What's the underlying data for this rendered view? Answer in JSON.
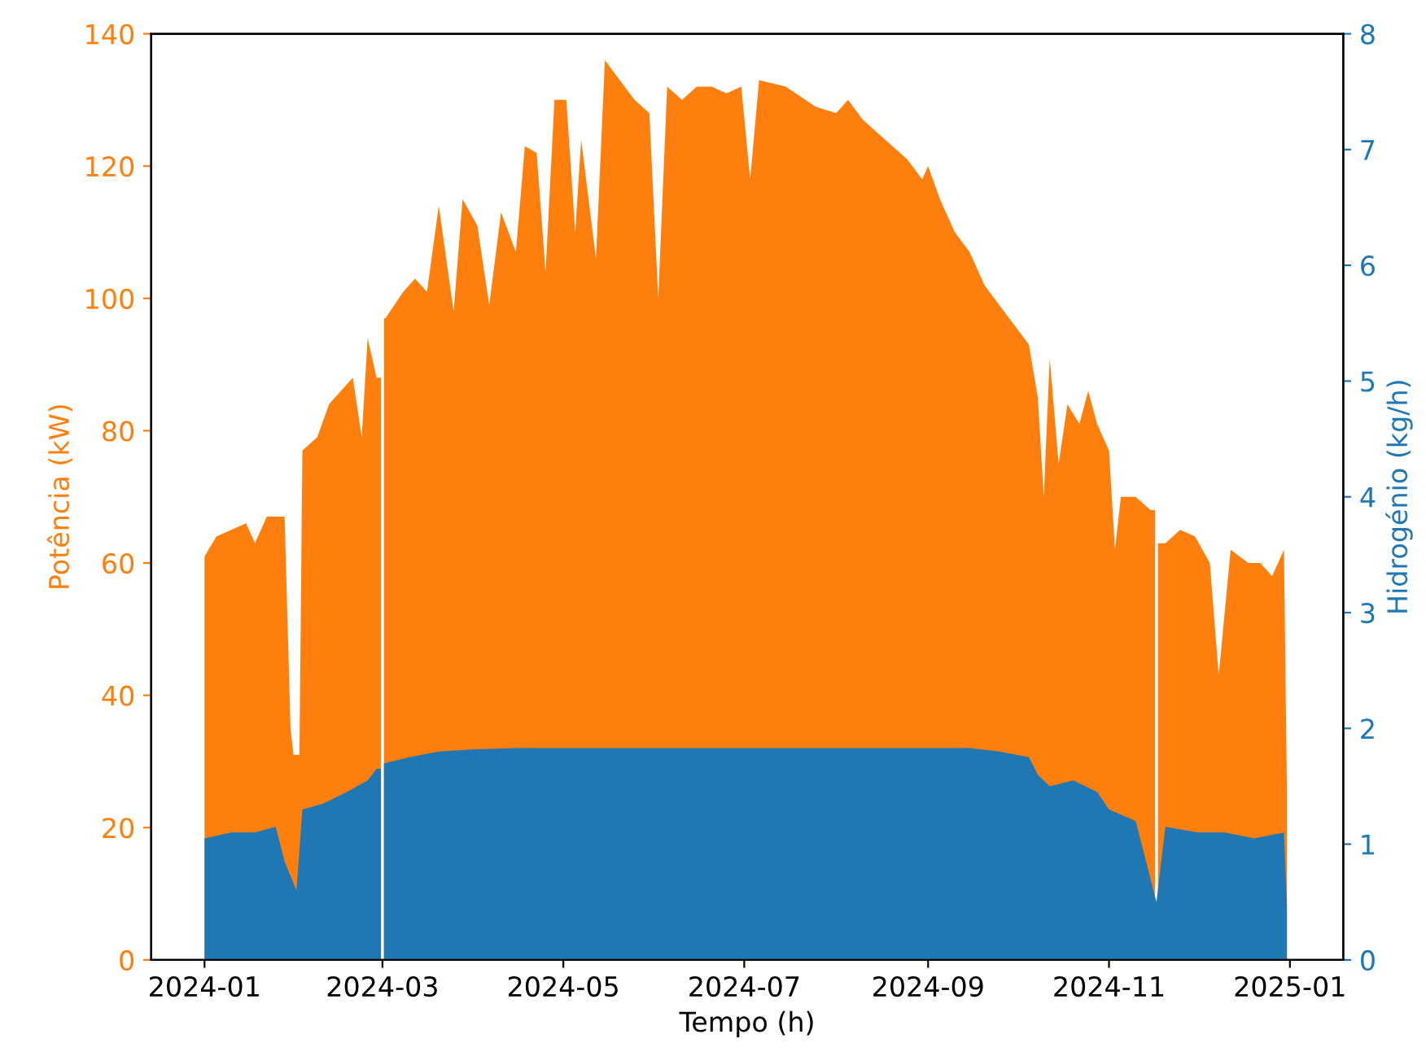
{
  "chart_data": {
    "type": "area",
    "xlabel": "Tempo (h)",
    "ylabel": "Potência (kW)",
    "y2label": "Hidrogénio (kg/h)",
    "xlim": [
      "2023-12-14",
      "2025-01-19"
    ],
    "xticks": [
      {
        "value": "2024-01-01",
        "label": "2024-01"
      },
      {
        "value": "2024-03-01",
        "label": "2024-03"
      },
      {
        "value": "2024-05-01",
        "label": "2024-05"
      },
      {
        "value": "2024-07-01",
        "label": "2024-07"
      },
      {
        "value": "2024-09-01",
        "label": "2024-09"
      },
      {
        "value": "2024-11-01",
        "label": "2024-11"
      },
      {
        "value": "2025-01-01",
        "label": "2025-01"
      }
    ],
    "ylim": [
      0,
      140
    ],
    "yticks": [
      0,
      20,
      40,
      60,
      80,
      100,
      120,
      140
    ],
    "y2lim": [
      0,
      8
    ],
    "y2ticks": [
      0,
      1,
      2,
      3,
      4,
      5,
      6,
      7,
      8
    ],
    "grid": false,
    "legend": false,
    "series": [
      {
        "color": "#ff7f0e",
        "axis": "y",
        "x": [
          "2024-01-01",
          "2024-01-05",
          "2024-01-10",
          "2024-01-15",
          "2024-01-18",
          "2024-01-22",
          "2024-01-25",
          "2024-01-28",
          "2024-01-30",
          "2024-01-31",
          "2024-02-01",
          "2024-02-02",
          "2024-02-03",
          "2024-02-08",
          "2024-02-12",
          "2024-02-16",
          "2024-02-20",
          "2024-02-23",
          "2024-02-25",
          "2024-02-28",
          "2024-02-29T12:00",
          "2024-03-01",
          "2024-03-01T12:00",
          "2024-03-02",
          "2024-03-08",
          "2024-03-12",
          "2024-03-16",
          "2024-03-20",
          "2024-03-25",
          "2024-03-28",
          "2024-04-02",
          "2024-04-06",
          "2024-04-10",
          "2024-04-15",
          "2024-04-18",
          "2024-04-22",
          "2024-04-25",
          "2024-04-28",
          "2024-05-02",
          "2024-05-05",
          "2024-05-07",
          "2024-05-12",
          "2024-05-15",
          "2024-05-20",
          "2024-05-25",
          "2024-05-30",
          "2024-06-02",
          "2024-06-05",
          "2024-06-10",
          "2024-06-15",
          "2024-06-20",
          "2024-06-25",
          "2024-06-30",
          "2024-07-03",
          "2024-07-06",
          "2024-07-15",
          "2024-07-25",
          "2024-08-01",
          "2024-08-05",
          "2024-08-10",
          "2024-08-20",
          "2024-08-25",
          "2024-08-30",
          "2024-09-01",
          "2024-09-05",
          "2024-09-10",
          "2024-09-15",
          "2024-09-20",
          "2024-09-25",
          "2024-09-30",
          "2024-10-05",
          "2024-10-08",
          "2024-10-10",
          "2024-10-12",
          "2024-10-15",
          "2024-10-18",
          "2024-10-22",
          "2024-10-25",
          "2024-10-28",
          "2024-11-01",
          "2024-11-03",
          "2024-11-05",
          "2024-11-10",
          "2024-11-15",
          "2024-11-16T12:00",
          "2024-11-17",
          "2024-11-17T12:00",
          "2024-11-20",
          "2024-11-25",
          "2024-11-30",
          "2024-12-05",
          "2024-12-08",
          "2024-12-12",
          "2024-12-18",
          "2024-12-22",
          "2024-12-26",
          "2024-12-30",
          "2024-12-31"
        ],
        "values": [
          61,
          64,
          65,
          66,
          63,
          67,
          67,
          67,
          35,
          31,
          31,
          31,
          77,
          79,
          84,
          86,
          88,
          79,
          94,
          88,
          88,
          null,
          97,
          97,
          101,
          103,
          101,
          114,
          98,
          115,
          111,
          99,
          113,
          107,
          123,
          122,
          104,
          130,
          130,
          110,
          124,
          106,
          136,
          133,
          130,
          128,
          100,
          132,
          130,
          132,
          132,
          131,
          132,
          118,
          133,
          132,
          129,
          128,
          130,
          127,
          123,
          121,
          118,
          120,
          115,
          110,
          107,
          102,
          99,
          96,
          93,
          85,
          70,
          91,
          75,
          84,
          81,
          86,
          81,
          77,
          62,
          70,
          70,
          68,
          68,
          null,
          63,
          63,
          65,
          64,
          60,
          43,
          62,
          60,
          60,
          58,
          62,
          25
        ]
      },
      {
        "color": "#1f77b4",
        "axis": "y2",
        "x": [
          "2024-01-01",
          "2024-01-10",
          "2024-01-18",
          "2024-01-25",
          "2024-01-28",
          "2024-02-01",
          "2024-02-03",
          "2024-02-10",
          "2024-02-18",
          "2024-02-25",
          "2024-02-28",
          "2024-02-29T12:00",
          "2024-03-01",
          "2024-03-01T12:00",
          "2024-03-02",
          "2024-03-10",
          "2024-03-20",
          "2024-04-01",
          "2024-04-15",
          "2024-05-01",
          "2024-06-01",
          "2024-07-01",
          "2024-08-01",
          "2024-09-01",
          "2024-09-15",
          "2024-09-25",
          "2024-10-05",
          "2024-10-08",
          "2024-10-12",
          "2024-10-20",
          "2024-10-28",
          "2024-11-01",
          "2024-11-10",
          "2024-11-17",
          "2024-11-20",
          "2024-12-01",
          "2024-12-10",
          "2024-12-20",
          "2024-12-30",
          "2024-12-31"
        ],
        "values": [
          1.05,
          1.1,
          1.1,
          1.15,
          0.85,
          0.6,
          1.3,
          1.35,
          1.45,
          1.55,
          1.65,
          1.65,
          null,
          1.7,
          1.7,
          1.75,
          1.8,
          1.82,
          1.83,
          1.83,
          1.83,
          1.83,
          1.83,
          1.83,
          1.83,
          1.8,
          1.75,
          1.6,
          1.5,
          1.55,
          1.45,
          1.3,
          1.2,
          0.5,
          1.15,
          1.1,
          1.1,
          1.05,
          1.1,
          0.45
        ]
      }
    ]
  }
}
